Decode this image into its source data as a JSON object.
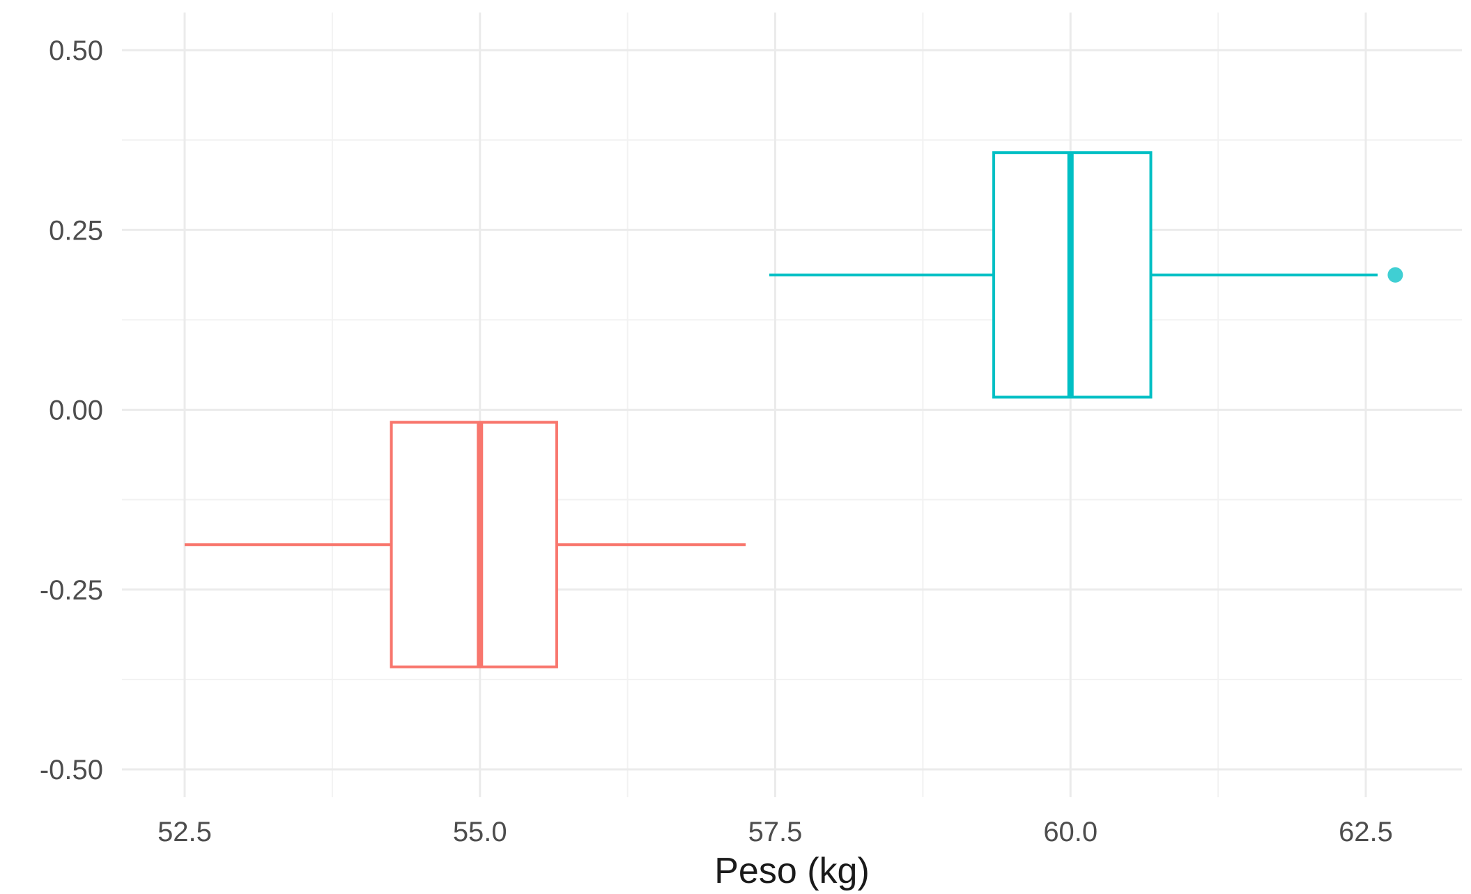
{
  "chart_data": {
    "type": "boxplot",
    "orientation": "horizontal",
    "title": "",
    "xlabel": "Peso (kg)",
    "ylabel": "",
    "xlim": [
      52.0,
      63.15
    ],
    "ylim": [
      -0.55,
      0.55
    ],
    "grid": true,
    "legend": "none",
    "x_ticks": [
      52.5,
      55.0,
      57.5,
      60.0,
      62.5
    ],
    "x_tick_labels": [
      "52.5",
      "55.0",
      "57.5",
      "60.0",
      "62.5"
    ],
    "x_minor_ticks": [
      53.75,
      56.25,
      58.75,
      61.25
    ],
    "y_ticks": [
      0.5,
      0.25,
      0.0,
      -0.25,
      -0.5
    ],
    "y_tick_labels": [
      "0.50",
      "0.25",
      "0.00",
      "-0.25",
      "-0.50"
    ],
    "y_minor_ticks": [
      0.375,
      0.125,
      -0.125,
      -0.375
    ],
    "boxes": [
      {
        "color": "#f8766d",
        "y_center": -0.1875,
        "y_range": [
          -0.3575,
          -0.0175
        ],
        "whisker_low": 52.5,
        "q1": 54.25,
        "median": 55.0,
        "q3": 55.65,
        "whisker_high": 57.25,
        "outliers": []
      },
      {
        "color": "#00bfc4",
        "y_center": 0.1875,
        "y_range": [
          0.0175,
          0.3575
        ],
        "whisker_low": 57.45,
        "q1": 59.35,
        "median": 60.0,
        "q3": 60.68,
        "whisker_high": 62.6,
        "outliers": [
          62.75
        ]
      }
    ]
  }
}
